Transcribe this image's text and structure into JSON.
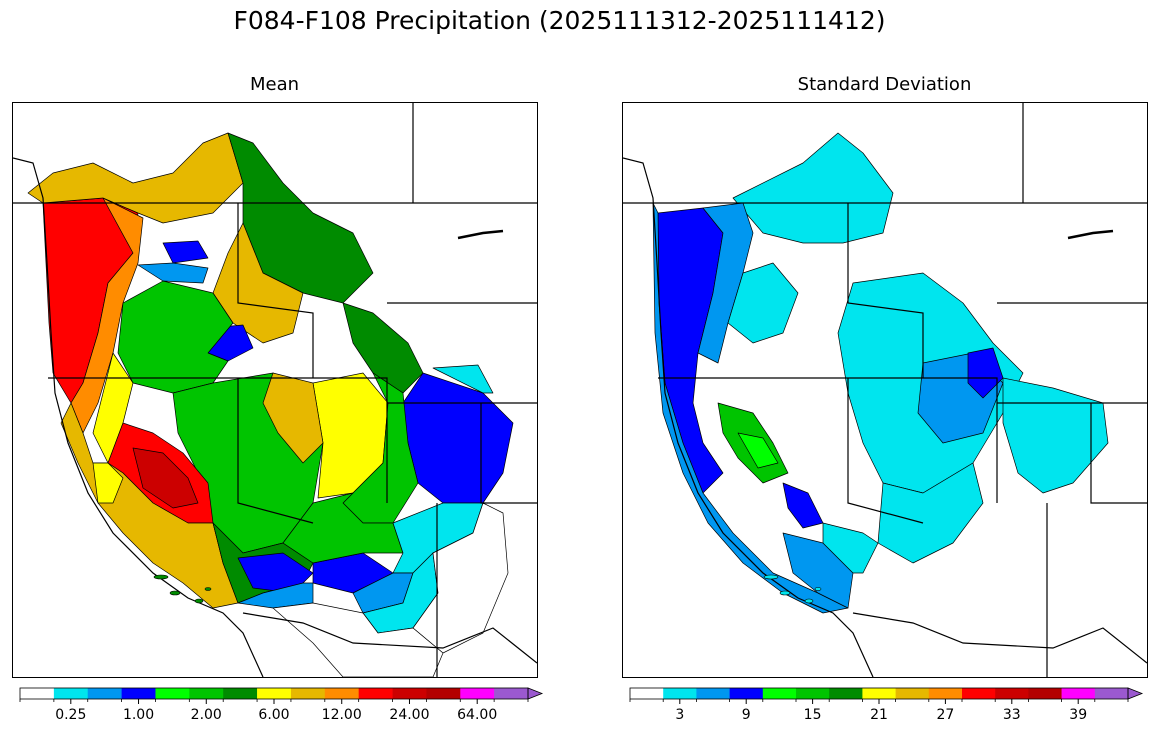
{
  "figure": {
    "title": "F084-F108 Precipitation (2025111312-2025111412)"
  },
  "panels": [
    {
      "title": "Mean",
      "colorbar": {
        "colors": [
          "#ffffff",
          "#00e5ee",
          "#0097f0",
          "#0000ff",
          "#00ff00",
          "#00c400",
          "#008b00",
          "#ffff00",
          "#e6b800",
          "#ff8c00",
          "#ff0000",
          "#cc0000",
          "#b30000",
          "#ff00ff",
          "#9b59d0"
        ],
        "tick_labels": [
          "0.25",
          "1.00",
          "2.00",
          "6.00",
          "12.00",
          "24.00",
          "64.00"
        ],
        "label_boundaries": [
          1,
          3,
          5,
          7,
          9,
          11,
          13
        ],
        "extend": "max"
      }
    },
    {
      "title": "Standard Deviation",
      "colorbar": {
        "colors": [
          "#ffffff",
          "#00e5ee",
          "#0097f0",
          "#0000ff",
          "#00ff00",
          "#00c400",
          "#008b00",
          "#ffff00",
          "#e6b800",
          "#ff8c00",
          "#ff0000",
          "#cc0000",
          "#b30000",
          "#ff00ff",
          "#9b59d0"
        ],
        "tick_labels": [
          "3",
          "9",
          "15",
          "21",
          "27",
          "33",
          "39"
        ],
        "label_boundaries": [
          1,
          3,
          5,
          7,
          9,
          11,
          13
        ],
        "extend": "max"
      }
    }
  ]
}
